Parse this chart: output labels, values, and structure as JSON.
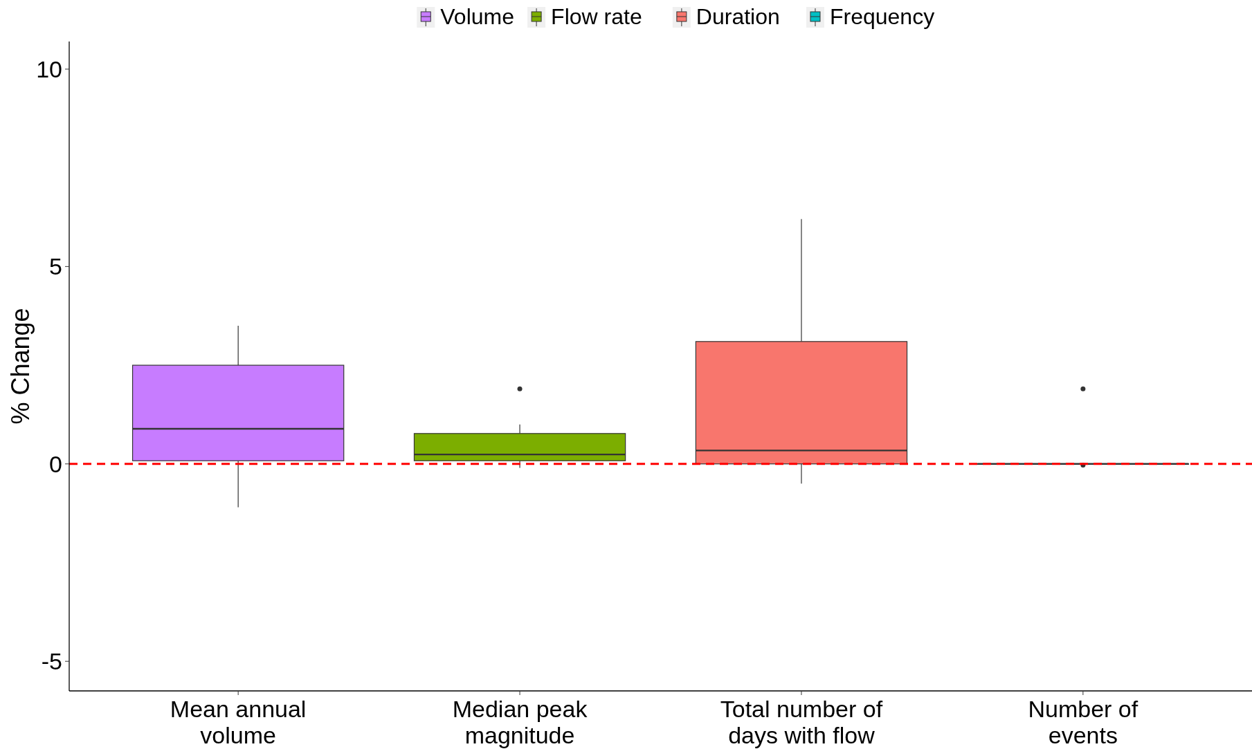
{
  "chart_data": {
    "type": "box",
    "ylabel": "% Change",
    "categories": [
      "Mean annual\nvolume",
      "Median peak\nmagnitude",
      "Total number of\ndays with flow",
      "Number of\nevents"
    ],
    "series": [
      {
        "name": "Volume",
        "color": "#c77cff",
        "boxes": [
          {
            "low": -1.1,
            "q1": 0.08,
            "median": 0.89,
            "q3": 2.5,
            "high": 3.5
          },
          null,
          null,
          null
        ]
      },
      {
        "name": "Flow rate",
        "color": "#7cae00",
        "boxes": [
          null,
          {
            "low": -0.1,
            "q1": 0.08,
            "median": 0.24,
            "q3": 0.77,
            "high": 1.0,
            "outliers": [
              1.9
            ]
          },
          null,
          null
        ]
      },
      {
        "name": "Duration",
        "color": "#f8766d",
        "boxes": [
          null,
          null,
          {
            "low": -0.5,
            "q1": 0,
            "median": 0.34,
            "q3": 3.1,
            "high": 6.2
          },
          null
        ]
      },
      {
        "name": "Frequency",
        "color": "#00bfc4",
        "boxes": [
          null,
          null,
          null,
          {
            "low": 0,
            "q1": 0,
            "median": 0,
            "q3": 0,
            "high": 0,
            "outliers": [
              1.9,
              -0.03
            ]
          }
        ]
      }
    ],
    "ylim": [
      -5.75,
      10.7
    ],
    "yticks": [
      -5,
      0,
      5,
      10
    ],
    "grid": false,
    "legend": "top",
    "ref_lines": [
      {
        "axis": "y",
        "value": 0,
        "color": "#ff0000",
        "line_style": "dashed"
      }
    ]
  }
}
